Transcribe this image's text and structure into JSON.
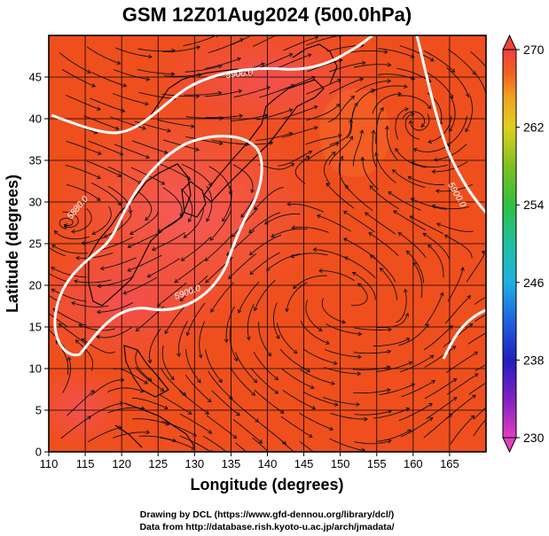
{
  "chart_data": {
    "type": "heatmap",
    "title": "GSM 12Z01Aug2024 (500.0hPa)",
    "xlabel": "Longitude (degrees)",
    "ylabel": "Latitude (degrees)",
    "xlim": [
      110,
      170
    ],
    "ylim": [
      0,
      50
    ],
    "xticks": [
      "110",
      "115",
      "120",
      "125",
      "130",
      "135",
      "140",
      "145",
      "150",
      "155",
      "160",
      "165"
    ],
    "yticks": [
      "0",
      "5",
      "10",
      "15",
      "20",
      "25",
      "30",
      "35",
      "40",
      "45"
    ],
    "colorbar": {
      "min": 230,
      "max": 270,
      "ticks": [
        "270",
        "262",
        "254",
        "246",
        "238",
        "230"
      ],
      "colors": [
        "#e040c0",
        "#8020c0",
        "#2020c0",
        "#2060e0",
        "#20b0e0",
        "#20c0a0",
        "#30c040",
        "#80c020",
        "#e0d020",
        "#f0a020",
        "#f06020",
        "#f04040"
      ]
    },
    "contours": [
      {
        "label": "5900.0",
        "level": 5900
      },
      {
        "label": "5880.0",
        "level": 5880
      },
      {
        "label": "5900.0",
        "level": 5900
      },
      {
        "label": "5900.0",
        "level": 5900
      }
    ],
    "grid": true,
    "streamlines": true
  },
  "credits": {
    "line1": "Drawing by DCL (https://www.gfd-dennou.org/library/dcl/)",
    "line2": "Data from http://database.rish.kyoto-u.ac.jp/arch/jmadata/"
  }
}
